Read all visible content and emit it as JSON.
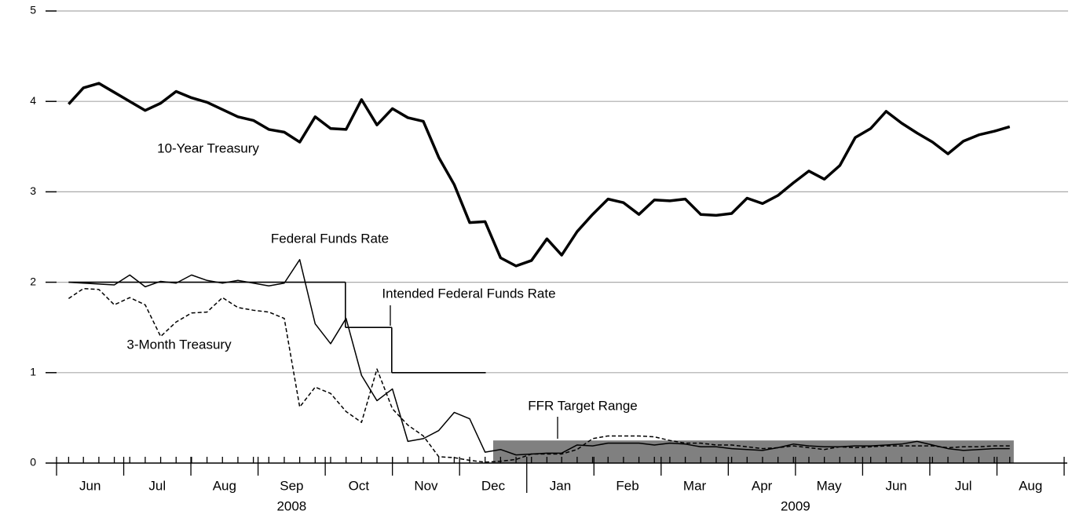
{
  "chart_data": {
    "type": "line",
    "categories": [
      "Jun",
      "Jul",
      "Aug",
      "Sep",
      "Oct",
      "Nov",
      "Dec",
      "Jan",
      "Feb",
      "Mar",
      "Apr",
      "May",
      "Jun",
      "Jul",
      "Aug"
    ],
    "year_labels": [
      {
        "label": "2008",
        "span": [
          0,
          7
        ]
      },
      {
        "label": "2009",
        "span": [
          7,
          15
        ]
      }
    ],
    "xlim": [
      0,
      15
    ],
    "ylim": [
      0,
      5
    ],
    "yticks": [
      0,
      1,
      2,
      3,
      4,
      5
    ],
    "grid": true,
    "x": [
      0.18,
      0.4,
      0.63,
      0.86,
      1.09,
      1.32,
      1.55,
      1.78,
      2.01,
      2.24,
      2.47,
      2.7,
      2.93,
      3.16,
      3.39,
      3.62,
      3.85,
      4.08,
      4.31,
      4.54,
      4.77,
      5.0,
      5.23,
      5.46,
      5.69,
      5.92,
      6.15,
      6.38,
      6.61,
      6.84,
      7.07,
      7.3,
      7.52,
      7.75,
      7.98,
      8.21,
      8.44,
      8.67,
      8.9,
      9.13,
      9.36,
      9.59,
      9.82,
      10.05,
      10.28,
      10.51,
      10.74,
      10.97,
      11.2,
      11.43,
      11.66,
      11.89,
      12.12,
      12.35,
      12.58,
      12.81,
      13.04,
      13.27,
      13.5,
      13.73,
      13.96,
      14.19
    ],
    "series": [
      {
        "name": "10-Year Treasury",
        "color": "#000000",
        "line_style": "thick",
        "values": [
          3.97,
          4.15,
          4.2,
          4.1,
          4.0,
          3.9,
          3.98,
          4.11,
          4.04,
          3.99,
          3.91,
          3.83,
          3.79,
          3.69,
          3.66,
          3.55,
          3.83,
          3.7,
          3.69,
          4.02,
          3.74,
          3.92,
          3.82,
          3.78,
          3.38,
          3.08,
          2.66,
          2.67,
          2.27,
          2.18,
          2.24,
          2.48,
          2.3,
          2.56,
          2.75,
          2.92,
          2.88,
          2.75,
          2.91,
          2.9,
          2.92,
          2.75,
          2.74,
          2.76,
          2.93,
          2.87,
          2.96,
          3.1,
          3.23,
          3.14,
          3.29,
          3.6,
          3.7,
          3.89,
          3.76,
          3.65,
          3.55,
          3.42,
          3.56,
          3.63,
          3.67,
          3.72
        ]
      },
      {
        "name": "Federal Funds Rate",
        "color": "#000000",
        "line_style": "thin",
        "values": [
          2.0,
          1.99,
          1.98,
          1.97,
          2.08,
          1.95,
          2.01,
          1.99,
          2.08,
          2.02,
          1.99,
          2.02,
          1.99,
          1.96,
          1.99,
          2.25,
          1.54,
          1.32,
          1.6,
          0.97,
          0.69,
          0.82,
          0.24,
          0.27,
          0.36,
          0.56,
          0.49,
          0.12,
          0.15,
          0.09,
          0.1,
          0.11,
          0.11,
          0.2,
          0.19,
          0.22,
          0.22,
          0.22,
          0.2,
          0.22,
          0.21,
          0.18,
          0.18,
          0.16,
          0.15,
          0.14,
          0.17,
          0.21,
          0.19,
          0.18,
          0.18,
          0.19,
          0.19,
          0.2,
          0.21,
          0.24,
          0.2,
          0.16,
          0.14,
          0.15,
          0.16,
          0.16
        ]
      },
      {
        "name": "3-Month Treasury",
        "color": "#000000",
        "line_style": "dashed",
        "values": [
          1.82,
          1.93,
          1.92,
          1.75,
          1.83,
          1.75,
          1.4,
          1.56,
          1.66,
          1.67,
          1.83,
          1.72,
          1.69,
          1.67,
          1.6,
          0.62,
          0.84,
          0.77,
          0.57,
          0.45,
          1.04,
          0.6,
          0.42,
          0.3,
          0.07,
          0.06,
          0.03,
          0.01,
          0.02,
          0.04,
          0.1,
          0.1,
          0.1,
          0.15,
          0.27,
          0.3,
          0.3,
          0.3,
          0.29,
          0.25,
          0.22,
          0.22,
          0.2,
          0.2,
          0.18,
          0.16,
          0.17,
          0.19,
          0.17,
          0.15,
          0.18,
          0.17,
          0.18,
          0.19,
          0.19,
          0.19,
          0.19,
          0.17,
          0.18,
          0.18,
          0.19,
          0.19
        ]
      },
      {
        "name": "Intended Federal Funds Rate",
        "color": "#000000",
        "line_style": "step",
        "x": [
          0.18,
          4.3,
          4.99,
          6.39
        ],
        "values": [
          2.0,
          1.5,
          1.0,
          1.0
        ]
      }
    ],
    "target_range": {
      "name": "FFR Target Range",
      "color": "#808080",
      "x": [
        6.5,
        14.25
      ],
      "low": 0,
      "high": 0.25
    }
  }
}
